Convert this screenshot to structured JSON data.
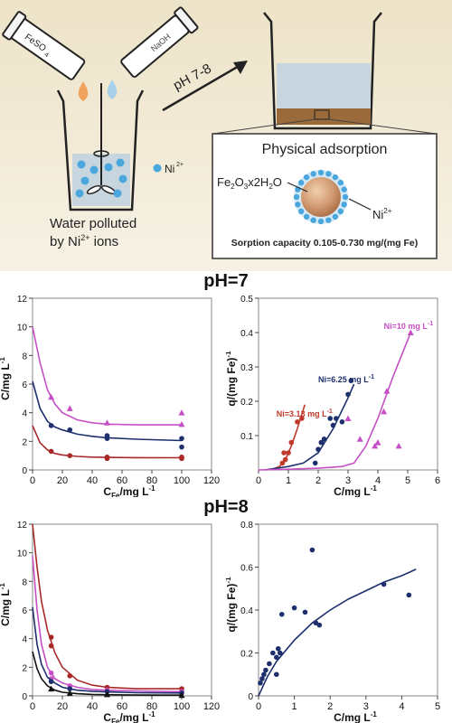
{
  "scheme": {
    "bottle_left_label": "FeSO4",
    "bottle_right_label": "NaOH",
    "ph_arrow_label": "pH 7-8",
    "ion_legend": "Ni2+",
    "beaker_caption_line1": "Water polluted",
    "beaker_caption_line2": "by Ni2+ ions",
    "box_title": "Physical adsorption",
    "particle_label": "Fe2O3x2H2O",
    "sorbed_ion_label": "Ni2+",
    "capacity_text": "Sorption capacity 0.105-0.730 mg/(mg Fe)",
    "colors": {
      "background_top": "#ede2c6",
      "water": "#c7d6de",
      "ion": "#4aa7dd",
      "particle": "#c8916a",
      "sediment": "#9b6a3a"
    }
  },
  "section_titles": {
    "ph7": "pH=7",
    "ph8": "pH=8"
  },
  "chart_data": [
    {
      "id": "ph7_c_vs_cfe",
      "type": "scatter",
      "xlabel": "CFe/mg L-1",
      "ylabel": "C/mg L-1",
      "xlim": [
        0,
        120
      ],
      "ylim": [
        0,
        12
      ],
      "xticks": [
        0,
        20,
        40,
        60,
        80,
        100,
        120
      ],
      "yticks": [
        0,
        2,
        4,
        6,
        8,
        10,
        12
      ],
      "grid": false,
      "series": [
        {
          "color": "#c64fc6",
          "marker": "triangle",
          "points": [
            [
              12.5,
              5.1
            ],
            [
              25,
              4.3
            ],
            [
              50,
              3.3
            ],
            [
              100,
              4.0
            ],
            [
              100,
              3.2
            ]
          ],
          "curve": [
            [
              0,
              10.0
            ],
            [
              5,
              7.5
            ],
            [
              10,
              5.6
            ],
            [
              15,
              4.6
            ],
            [
              20,
              4.0
            ],
            [
              30,
              3.5
            ],
            [
              40,
              3.3
            ],
            [
              50,
              3.2
            ],
            [
              70,
              3.15
            ],
            [
              100,
              3.15
            ]
          ]
        },
        {
          "color": "#1e2f6e",
          "marker": "circle",
          "points": [
            [
              12.5,
              3.1
            ],
            [
              25,
              2.8
            ],
            [
              50,
              2.4
            ],
            [
              50,
              2.2
            ],
            [
              100,
              2.2
            ],
            [
              100,
              1.6
            ]
          ],
          "curve": [
            [
              0,
              6.2
            ],
            [
              5,
              4.3
            ],
            [
              10,
              3.4
            ],
            [
              15,
              3.0
            ],
            [
              20,
              2.8
            ],
            [
              30,
              2.5
            ],
            [
              40,
              2.35
            ],
            [
              50,
              2.25
            ],
            [
              70,
              2.15
            ],
            [
              100,
              2.05
            ]
          ]
        },
        {
          "color": "#a82828",
          "marker": "circle",
          "points": [
            [
              12.5,
              1.3
            ],
            [
              25,
              1.0
            ],
            [
              50,
              0.9
            ],
            [
              50,
              0.8
            ],
            [
              100,
              0.9
            ],
            [
              100,
              0.8
            ]
          ],
          "curve": [
            [
              0,
              3.1
            ],
            [
              5,
              1.9
            ],
            [
              10,
              1.4
            ],
            [
              15,
              1.15
            ],
            [
              20,
              1.05
            ],
            [
              30,
              0.95
            ],
            [
              40,
              0.9
            ],
            [
              50,
              0.88
            ],
            [
              70,
              0.86
            ],
            [
              100,
              0.85
            ]
          ]
        }
      ]
    },
    {
      "id": "ph7_q_vs_c",
      "type": "scatter",
      "xlabel": "C/mg L-1",
      "ylabel": "q/(mg Fe)-1",
      "xlim": [
        0,
        6
      ],
      "ylim": [
        0,
        0.5
      ],
      "xticks": [
        0,
        1,
        2,
        3,
        4,
        5,
        6
      ],
      "yticks": [
        0.1,
        0.2,
        0.3,
        0.4,
        0.5
      ],
      "grid": false,
      "annotations": [
        "Ni=3.13 mg L-1",
        "Ni=6.25 mg L-1",
        "Ni=10 mg L-1"
      ],
      "series": [
        {
          "name": "Ni=3.13 mg L-1",
          "color": "#c0392b",
          "marker": "circle",
          "points": [
            [
              0.8,
              0.02
            ],
            [
              0.85,
              0.05
            ],
            [
              0.9,
              0.03
            ],
            [
              1.0,
              0.05
            ],
            [
              1.1,
              0.08
            ],
            [
              1.3,
              0.14
            ],
            [
              1.45,
              0.15
            ]
          ],
          "curve": [
            [
              0.4,
              0.0
            ],
            [
              0.7,
              0.01
            ],
            [
              0.9,
              0.03
            ],
            [
              1.1,
              0.07
            ],
            [
              1.3,
              0.12
            ],
            [
              1.55,
              0.19
            ]
          ]
        },
        {
          "name": "Ni=6.25 mg L-1",
          "color": "#1e2f6e",
          "marker": "circle",
          "points": [
            [
              1.9,
              0.02
            ],
            [
              2.0,
              0.06
            ],
            [
              2.1,
              0.08
            ],
            [
              2.2,
              0.09
            ],
            [
              2.4,
              0.15
            ],
            [
              2.5,
              0.13
            ],
            [
              2.6,
              0.15
            ],
            [
              2.8,
              0.14
            ],
            [
              3.0,
              0.22
            ],
            [
              3.1,
              0.26
            ]
          ],
          "curve": [
            [
              0.2,
              0.0
            ],
            [
              1.0,
              0.01
            ],
            [
              1.5,
              0.02
            ],
            [
              2.0,
              0.05
            ],
            [
              2.5,
              0.12
            ],
            [
              3.0,
              0.21
            ],
            [
              3.2,
              0.25
            ]
          ]
        },
        {
          "name": "Ni=10 mg L-1",
          "color": "#c64fc6",
          "marker": "triangle",
          "points": [
            [
              3.0,
              0.15
            ],
            [
              3.4,
              0.09
            ],
            [
              3.9,
              0.07
            ],
            [
              4.0,
              0.08
            ],
            [
              4.2,
              0.17
            ],
            [
              4.3,
              0.23
            ],
            [
              4.7,
              0.07
            ],
            [
              5.1,
              0.4
            ]
          ],
          "curve": [
            [
              0.0,
              0.0
            ],
            [
              1.0,
              0.002
            ],
            [
              2.0,
              0.005
            ],
            [
              2.8,
              0.01
            ],
            [
              3.2,
              0.02
            ],
            [
              3.6,
              0.07
            ],
            [
              4.0,
              0.15
            ],
            [
              4.5,
              0.27
            ],
            [
              5.1,
              0.4
            ]
          ]
        }
      ]
    },
    {
      "id": "ph8_c_vs_cfe",
      "type": "scatter",
      "xlabel": "CFe/mg L-1",
      "ylabel": "C/mg L-1",
      "xlim": [
        0,
        120
      ],
      "ylim": [
        0,
        12
      ],
      "xticks": [
        0,
        20,
        40,
        60,
        80,
        100,
        120
      ],
      "yticks": [
        0,
        2,
        4,
        6,
        8,
        10,
        12
      ],
      "grid": false,
      "series": [
        {
          "color": "#a82828",
          "marker": "circle",
          "points": [
            [
              12.5,
              4.1
            ],
            [
              12.5,
              3.5
            ],
            [
              25,
              1.4
            ],
            [
              50,
              0.6
            ],
            [
              100,
              0.5
            ]
          ],
          "curve": [
            [
              0,
              12.0
            ],
            [
              3,
              9.0
            ],
            [
              6,
              6.6
            ],
            [
              10,
              4.6
            ],
            [
              15,
              3.0
            ],
            [
              20,
              2.0
            ],
            [
              30,
              1.1
            ],
            [
              40,
              0.75
            ],
            [
              50,
              0.6
            ],
            [
              70,
              0.5
            ],
            [
              100,
              0.5
            ]
          ]
        },
        {
          "color": "#c64fc6",
          "marker": "circle",
          "points": [
            [
              12.5,
              1.6
            ],
            [
              12.5,
              1.2
            ],
            [
              25,
              0.7
            ],
            [
              50,
              0.4
            ],
            [
              100,
              0.3
            ]
          ],
          "curve": [
            [
              0,
              9.8
            ],
            [
              3,
              6.0
            ],
            [
              6,
              3.6
            ],
            [
              10,
              2.0
            ],
            [
              15,
              1.2
            ],
            [
              20,
              0.9
            ],
            [
              30,
              0.6
            ],
            [
              40,
              0.45
            ],
            [
              50,
              0.4
            ],
            [
              70,
              0.35
            ],
            [
              100,
              0.3
            ]
          ]
        },
        {
          "color": "#1e2f6e",
          "marker": "circle",
          "points": [
            [
              12.5,
              1.0
            ],
            [
              25,
              0.5
            ],
            [
              50,
              0.3
            ],
            [
              100,
              0.2
            ]
          ],
          "curve": [
            [
              0,
              6.2
            ],
            [
              3,
              3.6
            ],
            [
              6,
              2.2
            ],
            [
              10,
              1.3
            ],
            [
              15,
              0.9
            ],
            [
              20,
              0.6
            ],
            [
              30,
              0.4
            ],
            [
              40,
              0.32
            ],
            [
              50,
              0.28
            ],
            [
              70,
              0.22
            ],
            [
              100,
              0.2
            ]
          ]
        },
        {
          "color": "#111111",
          "marker": "triangle",
          "points": [
            [
              12.5,
              0.5
            ],
            [
              25,
              0.2
            ],
            [
              50,
              0.1
            ],
            [
              100,
              0.05
            ]
          ],
          "curve": [
            [
              0,
              3.1
            ],
            [
              3,
              1.9
            ],
            [
              6,
              1.2
            ],
            [
              10,
              0.7
            ],
            [
              15,
              0.4
            ],
            [
              20,
              0.25
            ],
            [
              30,
              0.15
            ],
            [
              40,
              0.1
            ],
            [
              50,
              0.08
            ],
            [
              70,
              0.06
            ],
            [
              100,
              0.05
            ]
          ]
        }
      ]
    },
    {
      "id": "ph8_q_vs_c",
      "type": "scatter",
      "xlabel": "C/mg L-1",
      "ylabel": "q/(mg Fe)-1",
      "xlim": [
        0,
        5
      ],
      "ylim": [
        0,
        0.8
      ],
      "xticks": [
        0,
        1,
        2,
        3,
        4,
        5
      ],
      "yticks": [
        0,
        0.2,
        0.4,
        0.6,
        0.8
      ],
      "grid": false,
      "series": [
        {
          "color": "#1e2f6e",
          "marker": "circle",
          "points": [
            [
              0.05,
              0.06
            ],
            [
              0.1,
              0.08
            ],
            [
              0.15,
              0.1
            ],
            [
              0.2,
              0.12
            ],
            [
              0.3,
              0.15
            ],
            [
              0.4,
              0.2
            ],
            [
              0.5,
              0.18
            ],
            [
              0.5,
              0.1
            ],
            [
              0.55,
              0.22
            ],
            [
              0.6,
              0.2
            ],
            [
              0.65,
              0.38
            ],
            [
              1.0,
              0.41
            ],
            [
              1.3,
              0.39
            ],
            [
              1.5,
              0.68
            ],
            [
              1.6,
              0.34
            ],
            [
              1.7,
              0.33
            ],
            [
              3.5,
              0.52
            ],
            [
              4.2,
              0.47
            ]
          ],
          "curve": [
            [
              0.0,
              0.0
            ],
            [
              0.25,
              0.09
            ],
            [
              0.5,
              0.16
            ],
            [
              1.0,
              0.26
            ],
            [
              1.5,
              0.34
            ],
            [
              2.0,
              0.4
            ],
            [
              2.5,
              0.45
            ],
            [
              3.0,
              0.49
            ],
            [
              3.5,
              0.53
            ],
            [
              4.0,
              0.56
            ],
            [
              4.4,
              0.59
            ]
          ]
        }
      ]
    }
  ]
}
